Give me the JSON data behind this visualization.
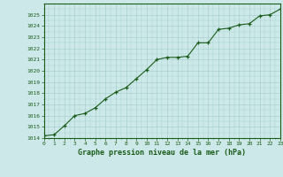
{
  "x": [
    0,
    1,
    2,
    3,
    4,
    5,
    6,
    7,
    8,
    9,
    10,
    11,
    12,
    13,
    14,
    15,
    16,
    17,
    18,
    19,
    20,
    21,
    22,
    23
  ],
  "y": [
    1014.2,
    1014.3,
    1015.1,
    1016.0,
    1016.2,
    1016.7,
    1017.5,
    1018.1,
    1018.5,
    1019.3,
    1020.1,
    1021.0,
    1021.2,
    1021.2,
    1021.3,
    1022.5,
    1022.5,
    1023.7,
    1023.8,
    1024.1,
    1024.2,
    1024.9,
    1025.0,
    1025.5
  ],
  "xlim": [
    0,
    23
  ],
  "ylim": [
    1014,
    1026
  ],
  "yticks": [
    1014,
    1015,
    1016,
    1017,
    1018,
    1019,
    1020,
    1021,
    1022,
    1023,
    1024,
    1025
  ],
  "xticks": [
    0,
    1,
    2,
    3,
    4,
    5,
    6,
    7,
    8,
    9,
    10,
    11,
    12,
    13,
    14,
    15,
    16,
    17,
    18,
    19,
    20,
    21,
    22,
    23
  ],
  "xlabel": "Graphe pression niveau de la mer (hPa)",
  "line_color": "#1a5c1a",
  "marker": "+",
  "bg_color": "#cce8e8",
  "grid_color": "#aad0d0",
  "tick_label_color": "#1a5c1a",
  "xlabel_color": "#1a5c1a",
  "font_family": "monospace"
}
